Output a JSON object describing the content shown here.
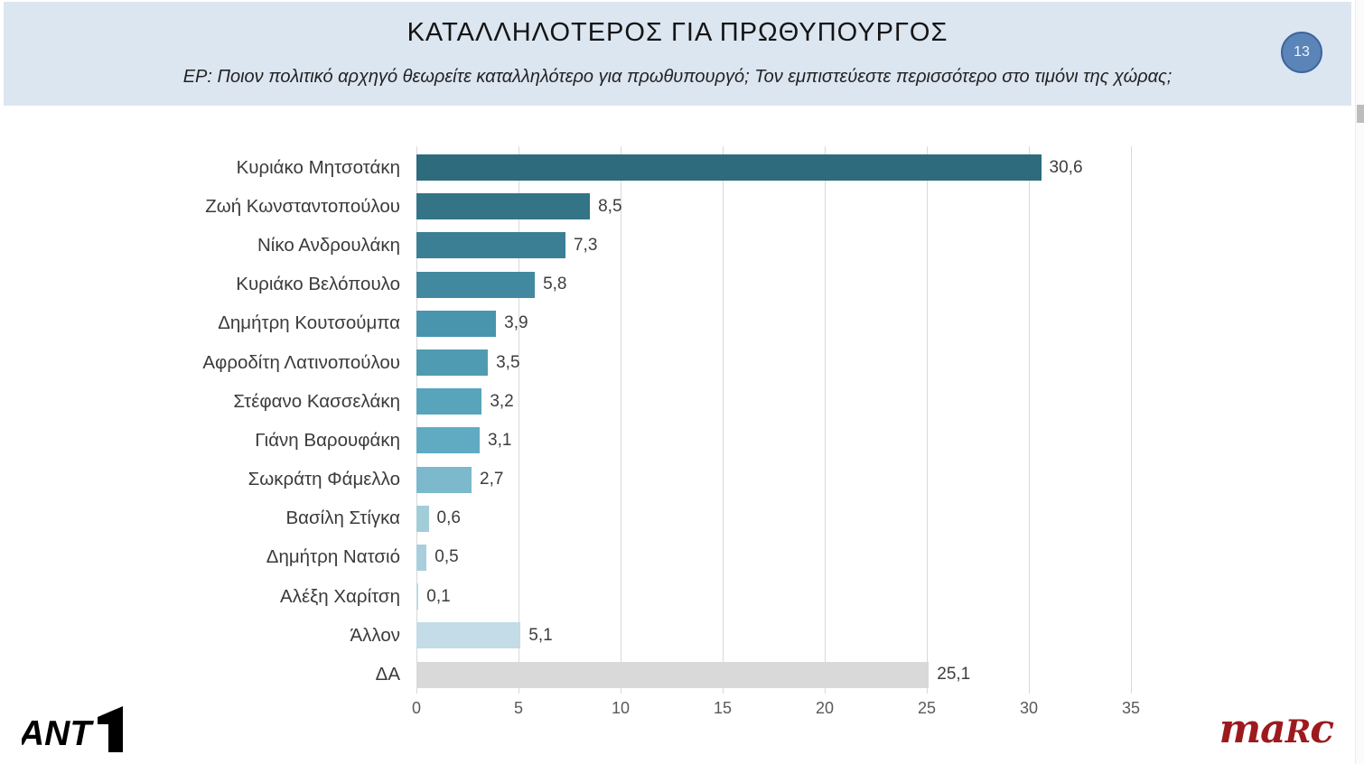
{
  "header": {
    "title": "ΚΑΤΑΛΛΗΛΟΤΕΡΟΣ ΓΙΑ ΠΡΩΘΥΠΟΥΡΓΟΣ",
    "subtitle": "ΕΡ: Ποιον πολιτικό αρχηγό θεωρείτε καταλληλότερο για πρωθυπουργό; Τον εμπιστεύεστε περισσότερο στο τιμόνι της χώρας;",
    "page_number": "13"
  },
  "chart_data": {
    "type": "bar",
    "orientation": "horizontal",
    "title": "ΚΑΤΑΛΛΗΛΟΤΕΡΟΣ ΓΙΑ ΠΡΩΘΥΠΟΥΡΓΟΣ",
    "categories": [
      "Κυριάκο Μητσοτάκη",
      "Ζωή Κωνσταντοπούλου",
      "Νίκο Ανδρουλάκη",
      "Κυριάκο Βελόπουλο",
      "Δημήτρη Κουτσούμπα",
      "Αφροδίτη Λατινοπούλου",
      "Στέφανο Κασσελάκη",
      "Γιάνη Βαρουφάκη",
      "Σωκράτη Φάμελλο",
      "Βασίλη Στίγκα",
      "Δημήτρη Νατσιό",
      "Αλέξη Χαρίτση",
      "Άλλον",
      "ΔΑ"
    ],
    "values": [
      30.6,
      8.5,
      7.3,
      5.8,
      3.9,
      3.5,
      3.2,
      3.1,
      2.7,
      0.6,
      0.5,
      0.1,
      5.1,
      25.1
    ],
    "value_labels": [
      "30,6",
      "8,5",
      "7,3",
      "5,8",
      "3,9",
      "3,5",
      "3,2",
      "3,1",
      "2,7",
      "0,6",
      "0,5",
      "0,1",
      "5,1",
      "25,1"
    ],
    "bar_colors": [
      "#2d6b7d",
      "#337487",
      "#3a7f93",
      "#42899f",
      "#4995ad",
      "#4f9cb2",
      "#57a4bb",
      "#60abc2",
      "#7cb9cc",
      "#a3ccd9",
      "#a9cfdd",
      "#bcd9e4",
      "#c3dce7",
      "#d9d9d9"
    ],
    "xlim": [
      0,
      35
    ],
    "x_ticks": [
      "0",
      "5",
      "10",
      "15",
      "20",
      "25",
      "30",
      "35"
    ],
    "grid": true,
    "legend": false
  },
  "footer": {
    "left_logo": "ANT1",
    "right_logo_ma": "ma",
    "right_logo_r": "R",
    "right_logo_c": "c"
  },
  "colors": {
    "header_bg": "#dce6f1",
    "badge_bg": "#5b84b8",
    "badge_border": "#3e659b",
    "grid": "#d9d9d9",
    "axis_text": "#595959",
    "label_text": "#3b3b3b",
    "marc_red": "#9c1a1e"
  }
}
